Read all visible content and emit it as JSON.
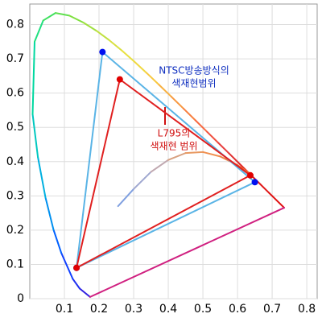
{
  "chart_data": {
    "type": "chromaticity",
    "xlim": [
      0,
      0.83
    ],
    "ylim": [
      0,
      0.86
    ],
    "xticks": [
      0.1,
      0.2,
      0.3,
      0.4,
      0.5,
      0.6,
      0.7,
      0.8
    ],
    "yticks": [
      0,
      0.1,
      0.2,
      0.3,
      0.4,
      0.5,
      0.6,
      0.7,
      0.8
    ],
    "grid": true,
    "series": [
      {
        "closed": true,
        "x": [
          0.1741,
          0.144,
          0.1241,
          0.0913,
          0.0687,
          0.0454,
          0.0235,
          0.0082,
          0.0139,
          0.0389,
          0.0743,
          0.1142,
          0.1547,
          0.1929,
          0.2296,
          0.2658,
          0.3016,
          0.3373,
          0.3731,
          0.4087,
          0.4441,
          0.4788,
          0.5125,
          0.5448,
          0.5752,
          0.6029,
          0.627,
          0.6482,
          0.6658,
          0.6915,
          0.7347
        ],
        "y": [
          0.005,
          0.0297,
          0.0578,
          0.1327,
          0.2007,
          0.295,
          0.4127,
          0.5384,
          0.7502,
          0.812,
          0.8338,
          0.8262,
          0.8059,
          0.7816,
          0.7543,
          0.7243,
          0.6923,
          0.6589,
          0.6245,
          0.5896,
          0.5547,
          0.5202,
          0.4866,
          0.4544,
          0.4242,
          0.3965,
          0.3725,
          0.3514,
          0.334,
          0.3083,
          0.2653
        ],
        "colors": [
          "#3020e0",
          "#2030f0",
          "#1040ff",
          "#0060ff",
          "#0090f0",
          "#00b0e0",
          "#00c8c0",
          "#00d8a0",
          "#20e080",
          "#40e060",
          "#60e050",
          "#80e040",
          "#a0e040",
          "#c0e040",
          "#d8e040",
          "#e8e040",
          "#f0d840",
          "#f8c840",
          "#f8b040",
          "#f89840",
          "#f88040",
          "#f86840",
          "#f05040",
          "#e84040",
          "#e03030",
          "#e02828",
          "#e02020",
          "#e01818",
          "#e01818",
          "#e01010",
          "#d02080"
        ]
      },
      {
        "closed": false,
        "x": [
          0.255,
          0.3,
          0.35,
          0.4,
          0.45,
          0.5,
          0.55,
          0.6,
          0.635
        ],
        "y": [
          0.27,
          0.32,
          0.37,
          0.405,
          0.425,
          0.428,
          0.415,
          0.39,
          0.366
        ],
        "colors": [
          "#80a0e0",
          "#a0a8d0",
          "#c0a8b0",
          "#d8a080",
          "#e89860",
          "#f09050",
          "#f08040",
          "#f07030",
          "#e86020"
        ]
      },
      {
        "closed": true,
        "color": "#5ab4e6",
        "marker_color": "#0010f0",
        "x": [
          0.21,
          0.65,
          0.135
        ],
        "y": [
          0.72,
          0.34,
          0.09
        ]
      },
      {
        "closed": true,
        "color": "#e02020",
        "marker_color": "#e00000",
        "x": [
          0.26,
          0.637,
          0.135
        ],
        "y": [
          0.64,
          0.36,
          0.09
        ]
      }
    ],
    "annotations": [
      {
        "lines": [
          "NTSC방송방식의",
          "색재현범위"
        ],
        "color": "#1030c0"
      },
      {
        "lines": [
          "L795의",
          "색재현 범위"
        ],
        "color": "#d01010"
      }
    ]
  }
}
